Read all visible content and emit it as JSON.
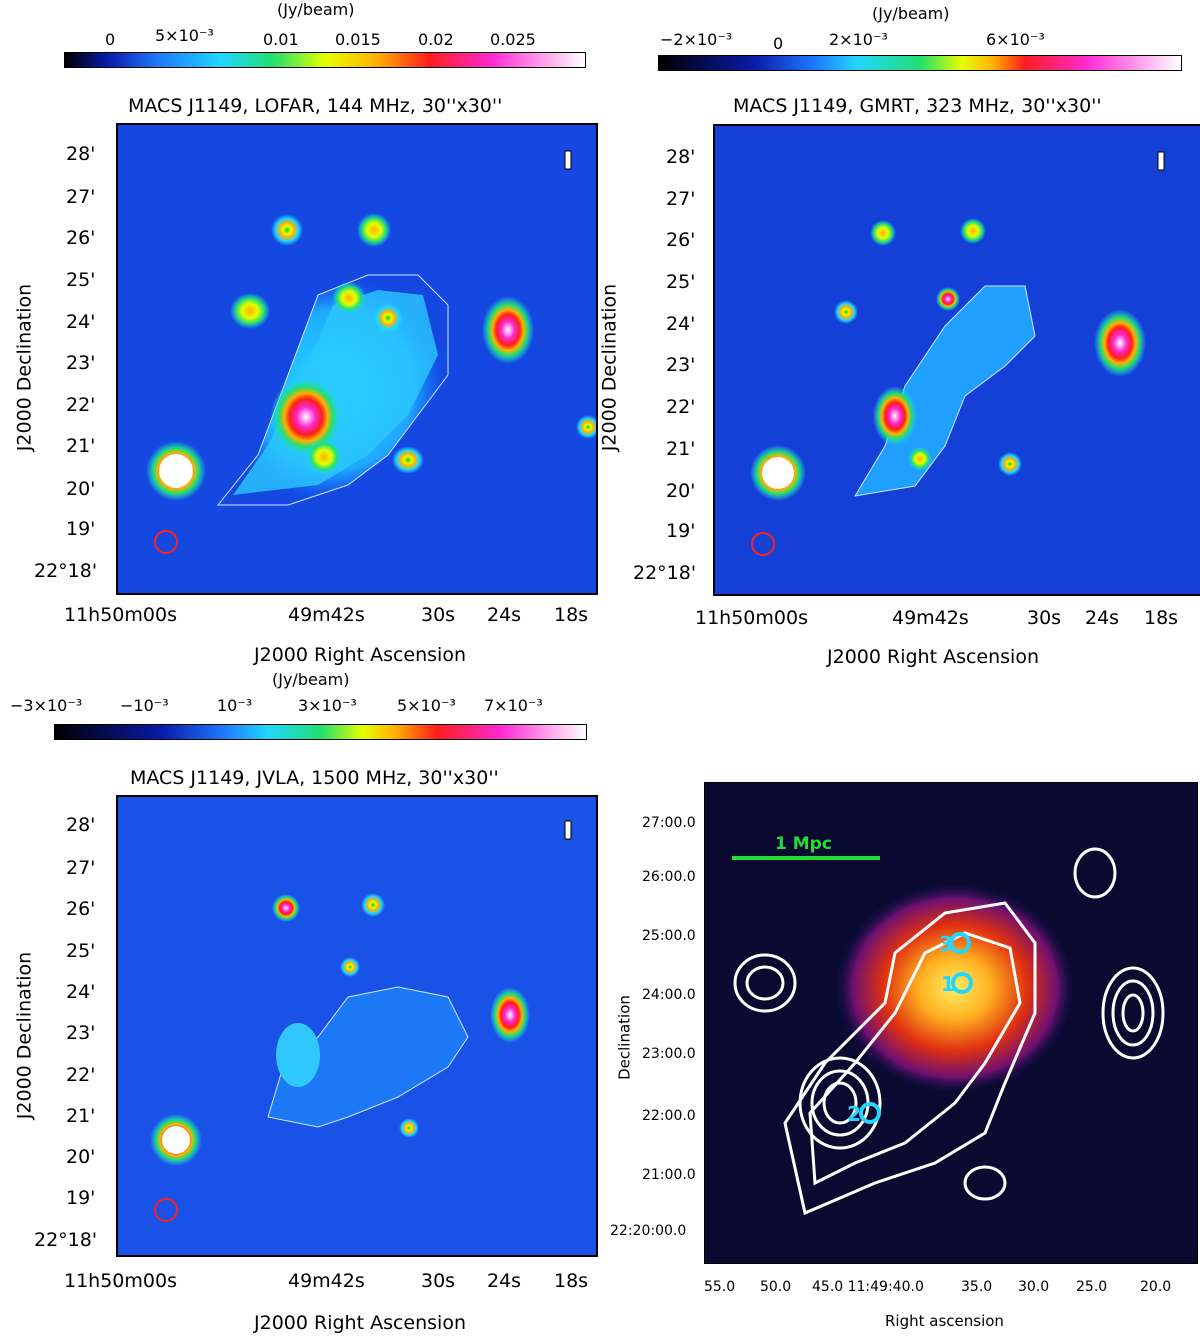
{
  "panels": [
    {
      "id": "lofar",
      "title": "MACS J1149, LOFAR, 144 MHz, 30''x30''",
      "cbar_unit": "(Jy/beam)",
      "cbar_ticks": [
        "0",
        "5×10⁻³",
        "0.01",
        "0.015",
        "0.02",
        "0.025"
      ],
      "cbar_colors": [
        "#000000",
        "#0a1aa8",
        "#1d7bff",
        "#22d6ff",
        "#20e070",
        "#e6ff00",
        "#ffb000",
        "#ff1d1d",
        "#ff2ad4",
        "#ffffff"
      ],
      "dec_ticks": [
        "28'",
        "27'",
        "26'",
        "25'",
        "24'",
        "23'",
        "22'",
        "21'",
        "20'",
        "19'",
        "22°18'"
      ],
      "ra_ticks": [
        "11h50m00s",
        "49m42s",
        "30s",
        "24s",
        "18s"
      ],
      "xlabel": "J2000 Right Ascension",
      "ylabel": "J2000 Declination"
    },
    {
      "id": "gmrt",
      "title": "MACS J1149, GMRT, 323 MHz, 30''x30''",
      "cbar_unit": "(Jy/beam)",
      "cbar_ticks": [
        "−2×10⁻³",
        "0",
        "2×10⁻³",
        "6×10⁻³"
      ],
      "cbar_colors": [
        "#000000",
        "#0a1aa8",
        "#1d7bff",
        "#22d6ff",
        "#20e070",
        "#e6ff00",
        "#ffb000",
        "#ff1d1d",
        "#ff2ad4",
        "#ffffff"
      ],
      "dec_ticks": [
        "28'",
        "27'",
        "26'",
        "25'",
        "24'",
        "23'",
        "22'",
        "21'",
        "20'",
        "19'",
        "22°18'"
      ],
      "ra_ticks": [
        "11h50m00s",
        "49m42s",
        "30s",
        "24s",
        "18s"
      ],
      "xlabel": "J2000 Right Ascension",
      "ylabel": "J2000 Declination"
    },
    {
      "id": "jvla",
      "title": "MACS J1149, JVLA, 1500 MHz, 30''x30''",
      "cbar_unit": "(Jy/beam)",
      "cbar_ticks": [
        "−3×10⁻³",
        "−10⁻³",
        "10⁻³",
        "3×10⁻³",
        "5×10⁻³",
        "7×10⁻³"
      ],
      "cbar_colors": [
        "#000000",
        "#0a1aa8",
        "#1d7bff",
        "#22d6ff",
        "#20e070",
        "#e6ff00",
        "#ffb000",
        "#ff1d1d",
        "#ff2ad4",
        "#ffffff"
      ],
      "dec_ticks": [
        "28'",
        "27'",
        "26'",
        "25'",
        "24'",
        "23'",
        "22'",
        "21'",
        "20'",
        "19'",
        "22°18'"
      ],
      "ra_ticks": [
        "11h50m00s",
        "49m42s",
        "30s",
        "24s",
        "18s"
      ],
      "xlabel": "J2000 Right Ascension",
      "ylabel": "J2000 Declination"
    },
    {
      "id": "xray",
      "scale_label": "1 Mpc",
      "dec_ticks": [
        "27:00.0",
        "26:00.0",
        "25:00.0",
        "24:00.0",
        "23:00.0",
        "22:00.0",
        "21:00.0",
        "22:20:00.0"
      ],
      "ra_ticks": [
        "55.0",
        "50.0",
        "45.0 11:49:40.0",
        "35.0",
        "30.0",
        "25.0",
        "20.0"
      ],
      "xlabel": "Right ascension",
      "ylabel": "Declination",
      "markers": [
        "3",
        "1",
        "2"
      ]
    }
  ]
}
